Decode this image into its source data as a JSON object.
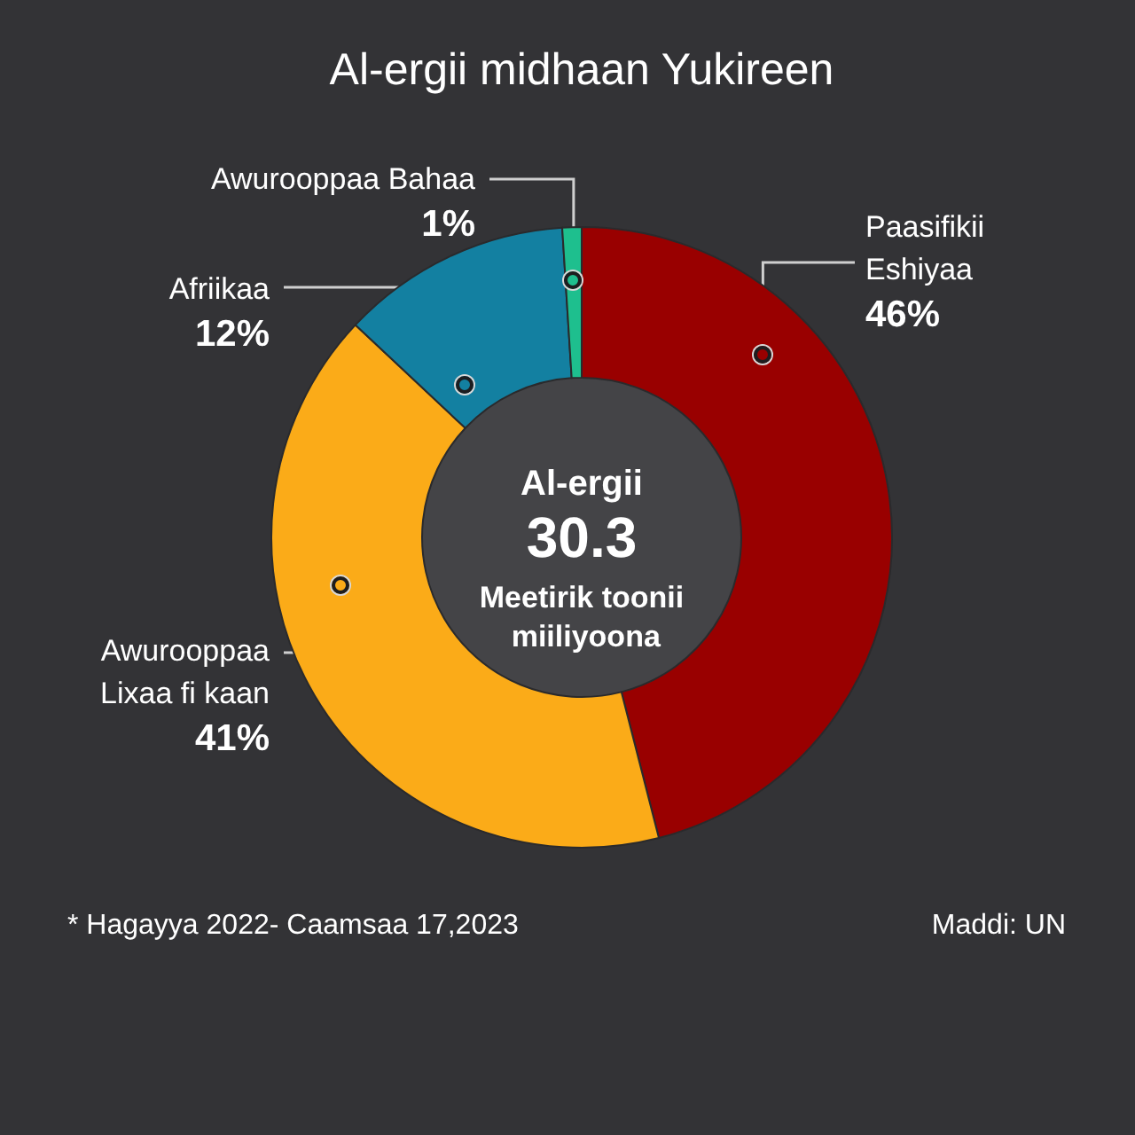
{
  "chart_data": {
    "type": "donut",
    "title": "Al-ergii midhaan Yukireen",
    "categories": [
      "Paasifikii Eshiyaa",
      "Awurooppaa Lixaa fi kaan",
      "Afriikaa",
      "Awurooppaa Bahaa"
    ],
    "values": [
      46,
      41,
      12,
      1
    ],
    "value_labels": [
      "46%",
      "41%",
      "12%",
      "1%"
    ],
    "colors": [
      "#990000",
      "#fbab18",
      "#1380a1",
      "#1ebf8e"
    ],
    "annotations": [
      "Al-ergii",
      "30.3",
      "Meetirik toonii miiliyoona",
      "* Hagayya 2022- Caamsaa 17,2023",
      "Maddi: UN"
    ]
  }
}
